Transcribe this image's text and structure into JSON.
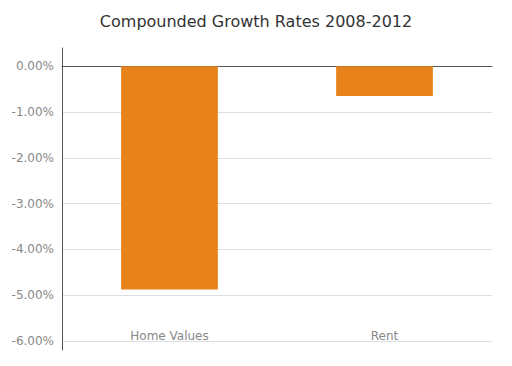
{
  "chart_data": {
    "type": "bar",
    "title": "Compounded Growth Rates 2008-2012",
    "categories": [
      "Home Values",
      "Rent"
    ],
    "values": [
      -0.0488,
      -0.0065
    ],
    "color": "#E8821A",
    "ylim": [
      -0.062,
      0.004
    ],
    "yticks": [
      {
        "value": 0.0,
        "label": "0.00%"
      },
      {
        "value": -0.01,
        "label": "-1.00%"
      },
      {
        "value": -0.02,
        "label": "-2.00%"
      },
      {
        "value": -0.03,
        "label": "-3.00%"
      },
      {
        "value": -0.04,
        "label": "-4.00%"
      },
      {
        "value": -0.05,
        "label": "-5.00%"
      },
      {
        "value": -0.06,
        "label": "-6.00%"
      }
    ],
    "grid": true
  }
}
